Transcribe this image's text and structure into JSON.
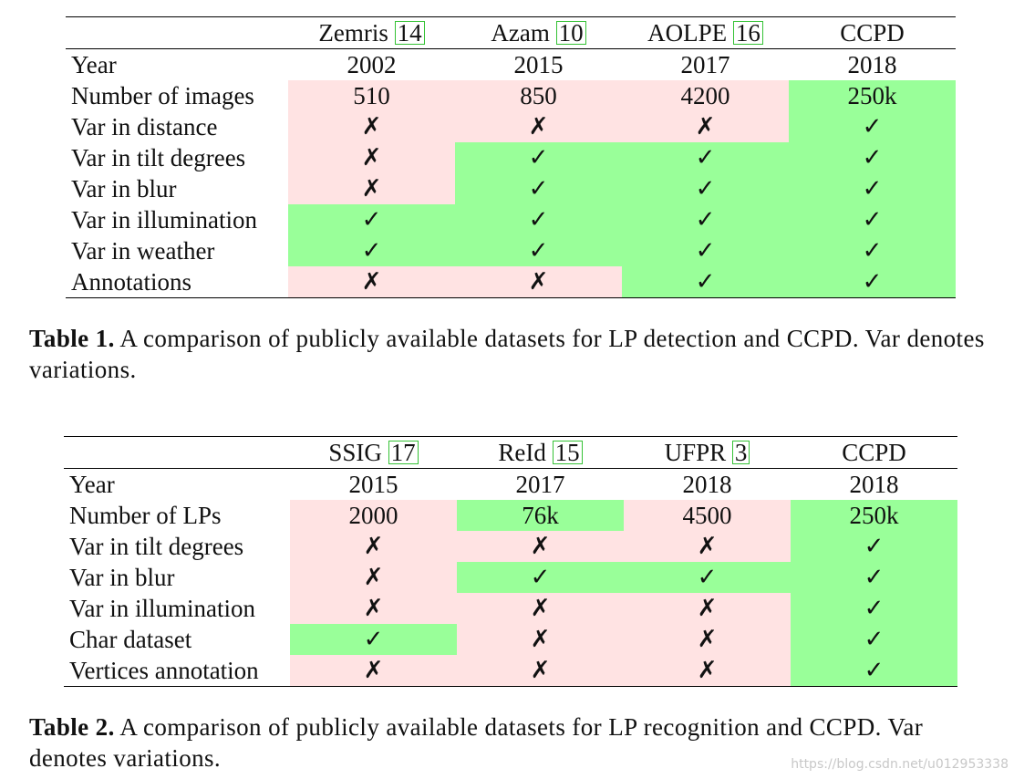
{
  "table1": {
    "headers": [
      {
        "name": "Zemris",
        "ref": "14"
      },
      {
        "name": "Azam",
        "ref": "10"
      },
      {
        "name": "AOLPE",
        "ref": "16"
      },
      {
        "name": "CCPD",
        "ref": ""
      }
    ],
    "rows": [
      {
        "label": "Year",
        "cells": [
          "2002",
          "2015",
          "2017",
          "2018"
        ],
        "colors": [
          "",
          "",
          "",
          ""
        ]
      },
      {
        "label": "Number of images",
        "cells": [
          "510",
          "850",
          "4200",
          "250k"
        ],
        "colors": [
          "r",
          "r",
          "r",
          "g"
        ]
      },
      {
        "label": "Var in distance",
        "cells": [
          "✗",
          "✗",
          "✗",
          "✓"
        ],
        "colors": [
          "r",
          "r",
          "r",
          "g"
        ]
      },
      {
        "label": "Var in tilt degrees",
        "cells": [
          "✗",
          "✓",
          "✓",
          "✓"
        ],
        "colors": [
          "r",
          "g",
          "g",
          "g"
        ]
      },
      {
        "label": "Var in blur",
        "cells": [
          "✗",
          "✓",
          "✓",
          "✓"
        ],
        "colors": [
          "r",
          "g",
          "g",
          "g"
        ]
      },
      {
        "label": "Var in illumination",
        "cells": [
          "✓",
          "✓",
          "✓",
          "✓"
        ],
        "colors": [
          "g",
          "g",
          "g",
          "g"
        ]
      },
      {
        "label": "Var in weather",
        "cells": [
          "✓",
          "✓",
          "✓",
          "✓"
        ],
        "colors": [
          "g",
          "g",
          "g",
          "g"
        ]
      },
      {
        "label": "Annotations",
        "cells": [
          "✗",
          "✗",
          "✓",
          "✓"
        ],
        "colors": [
          "r",
          "r",
          "g",
          "g"
        ]
      }
    ],
    "caption_label": "Table 1.",
    "caption_text": "A comparison of publicly available datasets for LP detection and CCPD. Var denotes variations."
  },
  "table2": {
    "headers": [
      {
        "name": "SSIG",
        "ref": "17"
      },
      {
        "name": "ReId",
        "ref": "15"
      },
      {
        "name": "UFPR",
        "ref": "3"
      },
      {
        "name": "CCPD",
        "ref": ""
      }
    ],
    "rows": [
      {
        "label": "Year",
        "cells": [
          "2015",
          "2017",
          "2018",
          "2018"
        ],
        "colors": [
          "",
          "",
          "",
          ""
        ]
      },
      {
        "label": "Number of LPs",
        "cells": [
          "2000",
          "76k",
          "4500",
          "250k"
        ],
        "colors": [
          "r",
          "g",
          "r",
          "g"
        ]
      },
      {
        "label": "Var in tilt degrees",
        "cells": [
          "✗",
          "✗",
          "✗",
          "✓"
        ],
        "colors": [
          "r",
          "r",
          "r",
          "g"
        ]
      },
      {
        "label": "Var in blur",
        "cells": [
          "✗",
          "✓",
          "✓",
          "✓"
        ],
        "colors": [
          "r",
          "g",
          "g",
          "g"
        ]
      },
      {
        "label": "Var in illumination",
        "cells": [
          "✗",
          "✗",
          "✗",
          "✓"
        ],
        "colors": [
          "r",
          "r",
          "r",
          "g"
        ]
      },
      {
        "label": "Char dataset",
        "cells": [
          "✓",
          "✗",
          "✗",
          "✓"
        ],
        "colors": [
          "g",
          "r",
          "r",
          "g"
        ]
      },
      {
        "label": "Vertices annotation",
        "cells": [
          "✗",
          "✗",
          "✗",
          "✓"
        ],
        "colors": [
          "r",
          "r",
          "r",
          "g"
        ]
      }
    ],
    "caption_label": "Table 2.",
    "caption_text": "A comparison of publicly available datasets for LP recognition and CCPD. Var denotes variations."
  },
  "watermark": "https://blog.csdn.net/u012953338",
  "colors": {
    "highlight_green": "#99ff99",
    "highlight_pink": "#ffe3e3",
    "ref_box": "#35c235"
  }
}
